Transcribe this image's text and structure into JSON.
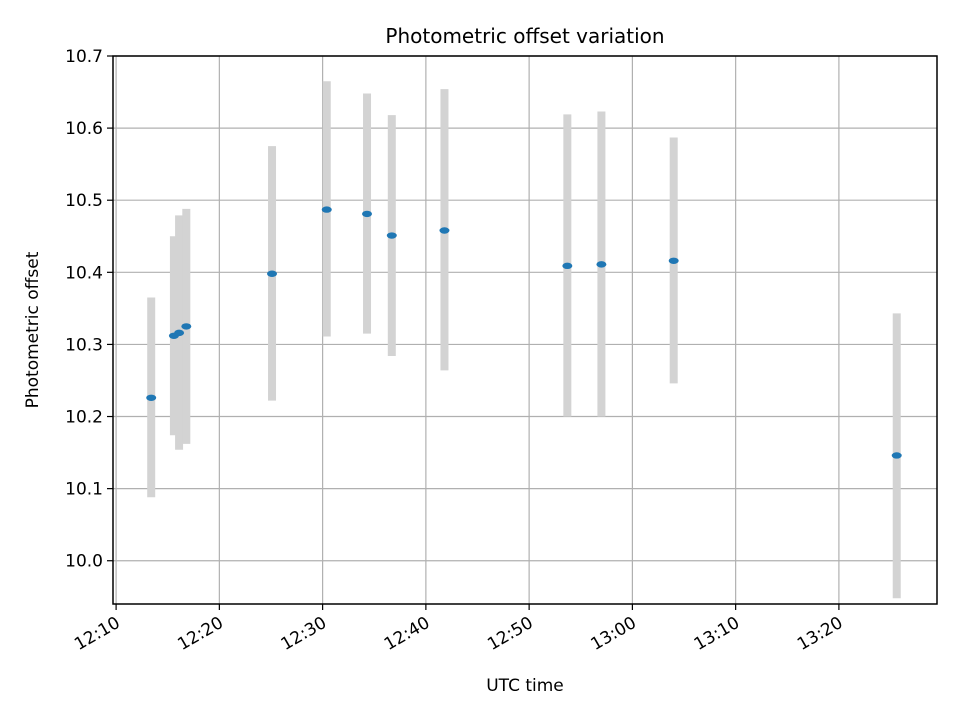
{
  "chart_data": {
    "type": "scatter",
    "title": "Photometric offset variation",
    "xlabel": "UTC time",
    "ylabel": "Photometric offset",
    "x_unit": "HH:MM",
    "xlim": [
      "12:09.7",
      "13:29.5"
    ],
    "ylim": [
      9.94,
      10.7
    ],
    "x_ticks": [
      "12:10",
      "12:20",
      "12:30",
      "12:40",
      "12:50",
      "13:00",
      "13:10",
      "13:20"
    ],
    "y_ticks": [
      "10.0",
      "10.1",
      "10.2",
      "10.3",
      "10.4",
      "10.5",
      "10.6",
      "10.7"
    ],
    "grid": true,
    "marker_color": "#1f77b4",
    "errorbar_color": "#d3d3d3",
    "points": [
      {
        "x": "12:13.4",
        "y": 10.226,
        "y_low": 10.088,
        "y_high": 10.365
      },
      {
        "x": "12:15.6",
        "y": 10.312,
        "y_low": 10.174,
        "y_high": 10.45
      },
      {
        "x": "12:16.1",
        "y": 10.316,
        "y_low": 10.154,
        "y_high": 10.479
      },
      {
        "x": "12:16.8",
        "y": 10.325,
        "y_low": 10.162,
        "y_high": 10.488
      },
      {
        "x": "12:25.1",
        "y": 10.398,
        "y_low": 10.222,
        "y_high": 10.575
      },
      {
        "x": "12:30.4",
        "y": 10.487,
        "y_low": 10.311,
        "y_high": 10.665
      },
      {
        "x": "12:34.3",
        "y": 10.481,
        "y_low": 10.315,
        "y_high": 10.648
      },
      {
        "x": "12:36.7",
        "y": 10.451,
        "y_low": 10.284,
        "y_high": 10.618
      },
      {
        "x": "12:41.8",
        "y": 10.458,
        "y_low": 10.264,
        "y_high": 10.654
      },
      {
        "x": "12:53.7",
        "y": 10.409,
        "y_low": 10.2,
        "y_high": 10.619
      },
      {
        "x": "12:57.0",
        "y": 10.411,
        "y_low": 10.2,
        "y_high": 10.623
      },
      {
        "x": "13:04.0",
        "y": 10.416,
        "y_low": 10.246,
        "y_high": 10.587
      },
      {
        "x": "13:25.6",
        "y": 10.146,
        "y_low": 9.948,
        "y_high": 10.343
      }
    ]
  }
}
